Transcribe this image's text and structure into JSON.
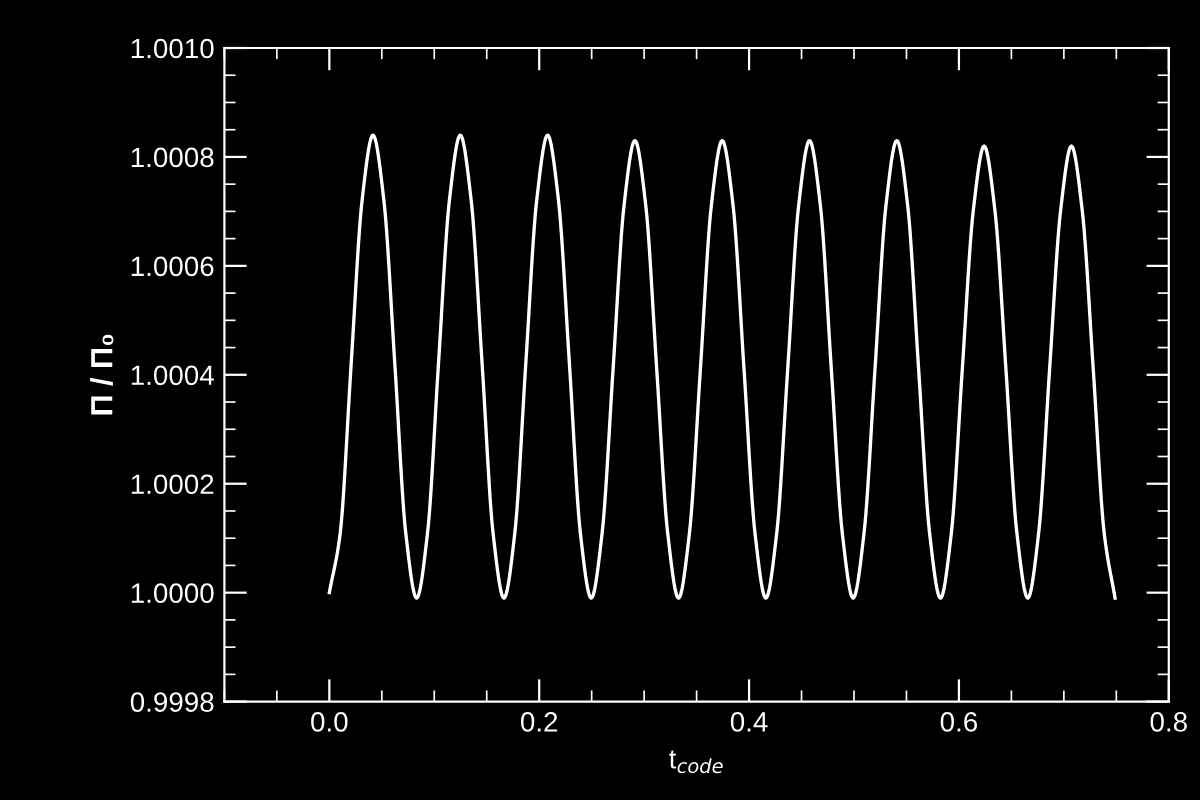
{
  "chart_data": {
    "type": "line",
    "xlabel": "t$_{code}$",
    "ylabel": "Π / Π₀",
    "xlim": [
      -0.1,
      0.8
    ],
    "xticks": [
      {
        "value": 0.0,
        "label": "0.0"
      },
      {
        "value": 0.2,
        "label": "0.2"
      },
      {
        "value": 0.4,
        "label": "0.4"
      },
      {
        "value": 0.6,
        "label": "0.6"
      },
      {
        "value": 0.8,
        "label": "0.8"
      }
    ],
    "ylim": [
      0.9998,
      1.001
    ],
    "yticks": [
      {
        "value": 0.9998,
        "label": "0.9998"
      },
      {
        "value": 1.0,
        "label": "1.0000"
      },
      {
        "value": 1.0002,
        "label": "1.0002"
      },
      {
        "value": 1.0004,
        "label": "1.0004"
      },
      {
        "value": 1.0006,
        "label": "1.0006"
      },
      {
        "value": 1.0008,
        "label": "1.0008"
      },
      {
        "value": 1.001,
        "label": "1.0010"
      }
    ],
    "grid": false,
    "series": [
      {
        "color": "#ffffff",
        "x": [
          0,
          0.0104,
          0.0208,
          0.0312,
          0.0416,
          0.052,
          0.0624,
          0.0728,
          0.0832,
          0.0936,
          0.104,
          0.1144,
          0.1248,
          0.1352,
          0.1456,
          0.156,
          0.1664,
          0.1768,
          0.1872,
          0.1976,
          0.208,
          0.2184,
          0.2288,
          0.2392,
          0.2496,
          0.26,
          0.2704,
          0.2808,
          0.2912,
          0.3016,
          0.312,
          0.3224,
          0.3328,
          0.3432,
          0.3536,
          0.364,
          0.3744,
          0.3848,
          0.3952,
          0.4056,
          0.416,
          0.4264,
          0.4368,
          0.4472,
          0.4576,
          0.468,
          0.4784,
          0.4888,
          0.4992,
          0.5096,
          0.52,
          0.5304,
          0.5408,
          0.5512,
          0.5616,
          0.572,
          0.5824,
          0.5928,
          0.6032,
          0.6136,
          0.624,
          0.6344,
          0.6448,
          0.6552,
          0.6656,
          0.676,
          0.6864,
          0.6968,
          0.7072,
          0.7176,
          0.728,
          0.7384,
          0.7488
        ],
        "values": [
          1.0,
          1.00011,
          1.00042,
          1.00072,
          1.00084,
          1.00072,
          1.00042,
          1.00011,
          0.99999,
          1.00011,
          1.00042,
          1.00072,
          1.00084,
          1.00072,
          1.00042,
          1.00011,
          0.99999,
          1.00011,
          1.00042,
          1.00072,
          1.00084,
          1.00072,
          1.00042,
          1.00011,
          0.99999,
          1.00011,
          1.00041,
          1.00071,
          1.00083,
          1.00071,
          1.00041,
          1.00011,
          0.99999,
          1.00011,
          1.00041,
          1.00071,
          1.00083,
          1.00071,
          1.00041,
          1.00011,
          0.99999,
          1.00011,
          1.00041,
          1.00071,
          1.00083,
          1.00071,
          1.00041,
          1.00011,
          0.99999,
          1.00011,
          1.00041,
          1.00071,
          1.00083,
          1.00071,
          1.00041,
          1.00011,
          0.99999,
          1.00011,
          1.00041,
          1.0007,
          1.00082,
          1.0007,
          1.00041,
          1.00011,
          0.99999,
          1.00011,
          1.00041,
          1.0007,
          1.00082,
          1.0007,
          1.00041,
          1.00011,
          0.99999
        ]
      }
    ]
  }
}
